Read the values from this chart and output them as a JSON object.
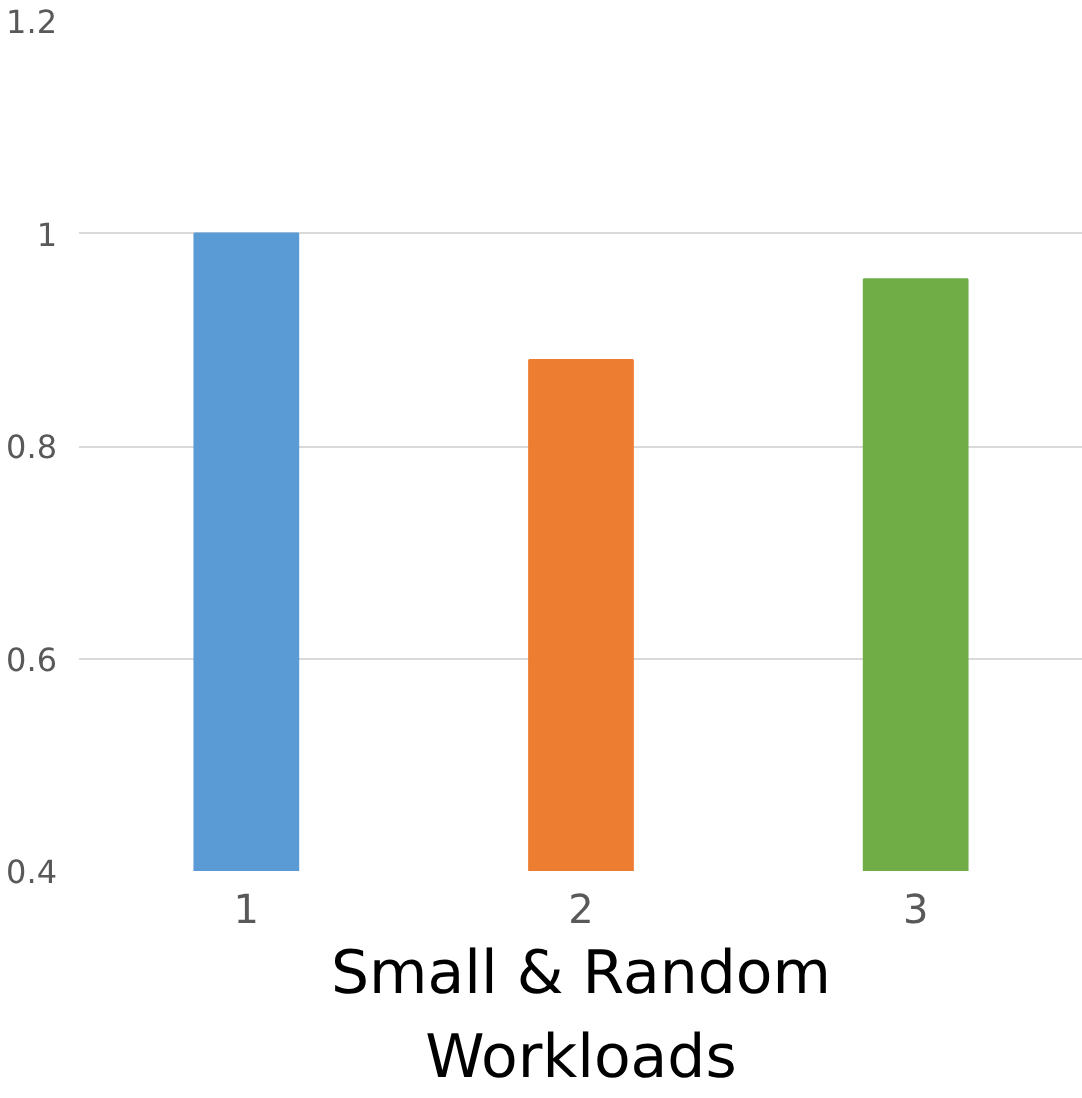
{
  "chart_data": {
    "type": "bar",
    "xlabel": "Small & Random Workloads",
    "categories": [
      "1",
      "2",
      "3"
    ],
    "values": [
      1.0,
      0.881,
      0.957
    ],
    "colors": [
      "#5b9bd5",
      "#ed7d31",
      "#70ad47"
    ],
    "ylim": [
      0.4,
      1.2
    ],
    "yticks": [
      0.4,
      0.6,
      0.8,
      1,
      1.2
    ],
    "grid": "y"
  }
}
